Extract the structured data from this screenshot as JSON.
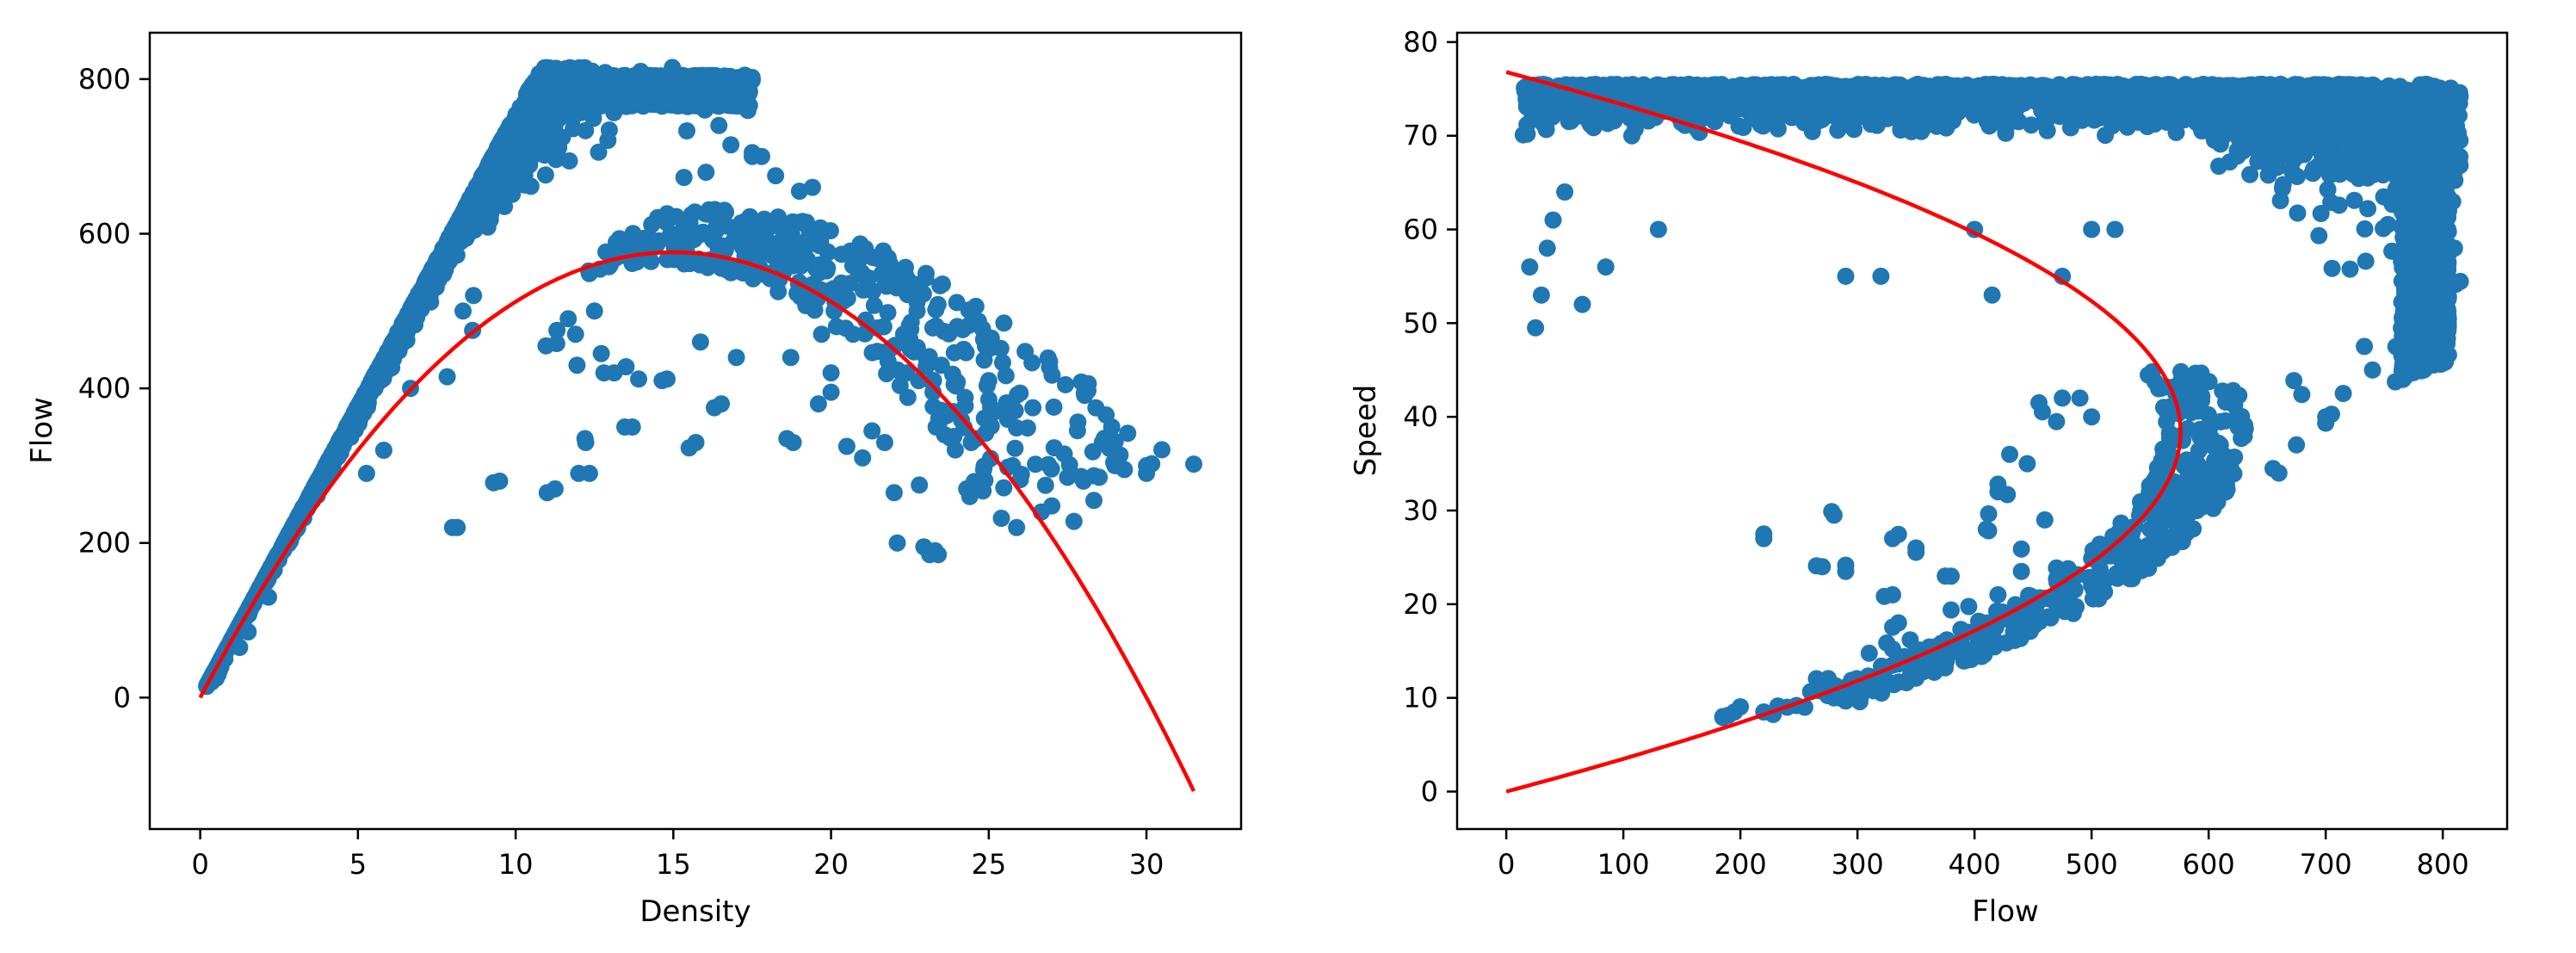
{
  "chart_data": [
    {
      "type": "scatter",
      "xlabel": "Density",
      "ylabel": "Flow",
      "xlim": [
        -1.6,
        33.0
      ],
      "ylim": [
        -170,
        860
      ],
      "xticks": [
        0,
        5,
        10,
        15,
        20,
        25,
        30
      ],
      "yticks": [
        0,
        200,
        400,
        600,
        800
      ],
      "grid": false,
      "legend": "none",
      "point_color": "#1f77b4",
      "fit_color": "#ff0000",
      "fit": {
        "vf": 76.8,
        "kj": 30.0,
        "x_range": [
          0,
          31.5
        ]
      },
      "outliers": [
        [
          8.0,
          220
        ],
        [
          9.3,
          278
        ],
        [
          11.0,
          265
        ],
        [
          12.0,
          290
        ],
        [
          12.2,
          335
        ],
        [
          13.7,
          350
        ],
        [
          13.9,
          412
        ],
        [
          15.5,
          323
        ],
        [
          14.8,
          412
        ],
        [
          12.8,
          420
        ],
        [
          13.5,
          428
        ],
        [
          16.3,
          375
        ],
        [
          17.0,
          440
        ],
        [
          18.6,
          335
        ],
        [
          18.8,
          330
        ],
        [
          19.6,
          380
        ],
        [
          20.0,
          395
        ],
        [
          20.5,
          325
        ],
        [
          21.0,
          310
        ],
        [
          21.3,
          345
        ],
        [
          21.7,
          330
        ],
        [
          22.0,
          265
        ],
        [
          22.1,
          200
        ],
        [
          22.8,
          275
        ],
        [
          23.3,
          190
        ],
        [
          23.4,
          185
        ],
        [
          23.6,
          340
        ],
        [
          24.3,
          270
        ],
        [
          24.4,
          260
        ],
        [
          24.6,
          335
        ],
        [
          24.9,
          342
        ],
        [
          25.2,
          370
        ],
        [
          25.6,
          360
        ],
        [
          26.0,
          282
        ],
        [
          25.4,
          232
        ],
        [
          26.4,
          375
        ],
        [
          27.0,
          248
        ],
        [
          27.5,
          285
        ],
        [
          27.7,
          228
        ],
        [
          28.0,
          280
        ],
        [
          28.3,
          318
        ],
        [
          28.6,
          330
        ],
        [
          28.9,
          350
        ],
        [
          29.0,
          300
        ],
        [
          29.3,
          295
        ],
        [
          30.0,
          290
        ],
        [
          31.5,
          302
        ],
        [
          25.0,
          410
        ],
        [
          23.9,
          405
        ],
        [
          23.2,
          408
        ],
        [
          22.6,
          450
        ],
        [
          22.3,
          470
        ],
        [
          21.8,
          498
        ],
        [
          21.2,
          480
        ],
        [
          20.7,
          470
        ],
        [
          20.1,
          500
        ],
        [
          19.7,
          470
        ],
        [
          19.2,
          520
        ],
        [
          18.5,
          600
        ],
        [
          17.6,
          560
        ],
        [
          17.2,
          610
        ],
        [
          18.0,
          590
        ],
        [
          17.8,
          700
        ],
        [
          19.0,
          655
        ],
        [
          17.5,
          705
        ],
        [
          11.3,
          458
        ],
        [
          11.9,
          470
        ],
        [
          12.5,
          500
        ],
        [
          24.0,
          408
        ],
        [
          24.8,
          477
        ],
        [
          23.5,
          430
        ],
        [
          22.4,
          420
        ]
      ]
    },
    {
      "type": "scatter",
      "xlabel": "Flow",
      "ylabel": "Speed",
      "xlim": [
        -42,
        855
      ],
      "ylim": [
        -4,
        81
      ],
      "xticks": [
        0,
        100,
        200,
        300,
        400,
        500,
        600,
        700,
        800
      ],
      "yticks": [
        0,
        10,
        20,
        30,
        40,
        50,
        60,
        70,
        80
      ],
      "grid": false,
      "legend": "none",
      "point_color": "#1f77b4",
      "fit_color": "#ff0000",
      "fit": {
        "vf": 76.8,
        "kj": 30.0,
        "speed_range": [
          0,
          76.8
        ]
      },
      "outliers": [
        [
          220,
          27
        ],
        [
          270,
          24
        ],
        [
          290,
          23.5
        ],
        [
          280,
          29.5
        ],
        [
          330,
          27
        ],
        [
          350,
          26
        ],
        [
          380,
          23
        ],
        [
          330,
          21
        ],
        [
          185,
          8
        ],
        [
          195,
          8.5
        ],
        [
          220,
          8.5
        ],
        [
          240,
          9
        ],
        [
          255,
          9
        ],
        [
          270,
          11
        ],
        [
          285,
          10
        ],
        [
          300,
          10
        ],
        [
          315,
          11.5
        ],
        [
          330,
          13.5
        ],
        [
          350,
          15
        ],
        [
          370,
          15.5
        ],
        [
          395,
          17
        ],
        [
          410,
          18
        ],
        [
          420,
          21
        ],
        [
          440,
          23.5
        ],
        [
          460,
          29
        ],
        [
          455,
          41.5
        ],
        [
          475,
          42
        ],
        [
          490,
          42
        ],
        [
          410,
          28
        ],
        [
          420,
          32
        ],
        [
          430,
          36
        ],
        [
          445,
          35
        ],
        [
          65,
          52
        ],
        [
          85,
          56
        ],
        [
          130,
          60
        ],
        [
          290,
          55
        ],
        [
          320,
          55
        ],
        [
          400,
          60
        ],
        [
          415,
          53
        ],
        [
          475,
          55
        ],
        [
          500,
          60
        ],
        [
          520,
          60
        ],
        [
          660,
          34
        ],
        [
          675,
          37
        ],
        [
          700,
          40
        ],
        [
          715,
          42.5
        ],
        [
          740,
          45
        ],
        [
          760,
          47.5
        ],
        [
          780,
          50
        ],
        [
          800,
          54
        ],
        [
          810,
          58
        ],
        [
          805,
          62
        ],
        [
          800,
          64
        ],
        [
          780,
          67
        ],
        [
          760,
          69
        ],
        [
          740,
          70
        ],
        [
          710,
          71.5
        ],
        [
          680,
          72
        ],
        [
          640,
          73
        ],
        [
          600,
          74
        ],
        [
          25,
          49.5
        ],
        [
          30,
          53
        ],
        [
          20,
          56
        ],
        [
          35,
          58
        ],
        [
          40,
          61
        ],
        [
          50,
          64
        ],
        [
          590,
          30
        ],
        [
          600,
          32
        ],
        [
          610,
          37
        ],
        [
          550,
          28
        ],
        [
          530,
          24
        ],
        [
          500,
          22
        ],
        [
          480,
          20
        ]
      ]
    }
  ]
}
